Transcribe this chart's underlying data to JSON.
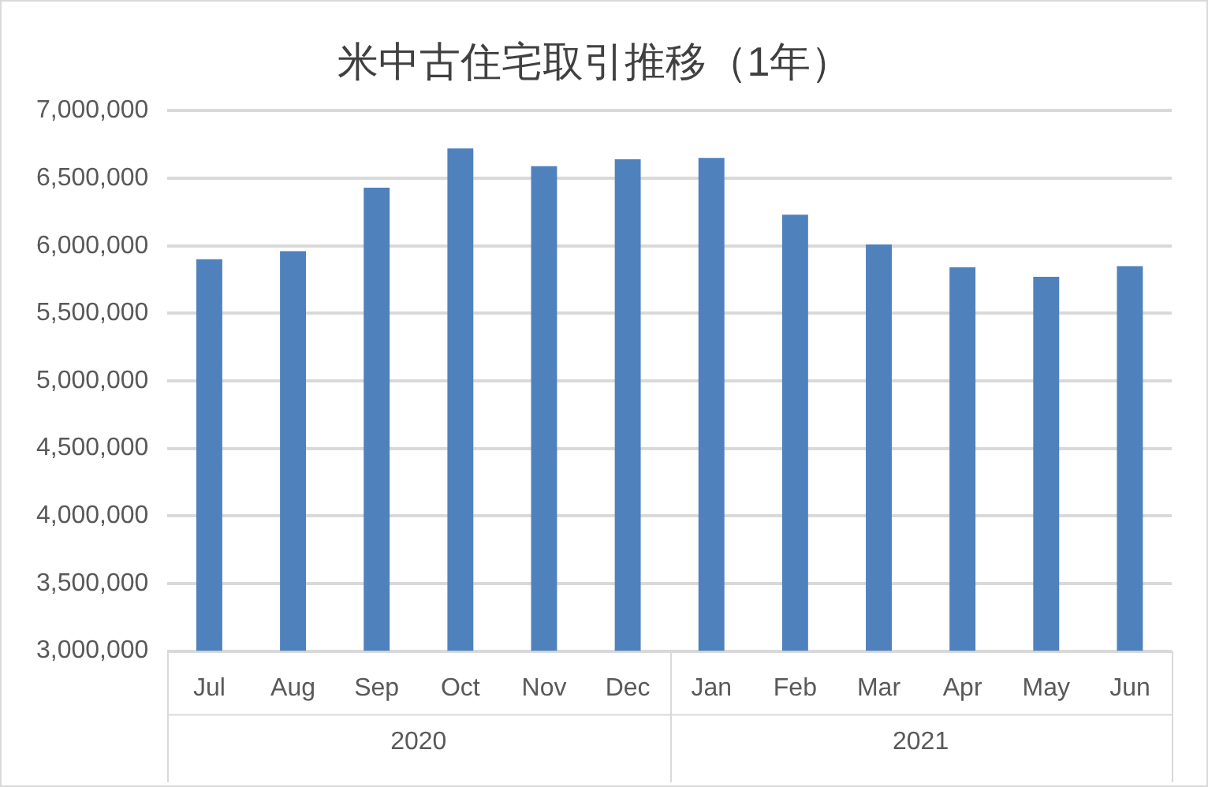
{
  "chart_data": {
    "type": "bar",
    "title": "米中古住宅取引推移（1年）",
    "categories": [
      "Jul",
      "Aug",
      "Sep",
      "Oct",
      "Nov",
      "Dec",
      "Jan",
      "Feb",
      "Mar",
      "Apr",
      "May",
      "Jun"
    ],
    "values": [
      5900000,
      5960000,
      6430000,
      6720000,
      6590000,
      6640000,
      6650000,
      6230000,
      6010000,
      5840000,
      5770000,
      5850000
    ],
    "color": "#4f81bd",
    "ylim": [
      3000000,
      7000000
    ],
    "yticks": [
      {
        "value": 3000000,
        "label": "3,000,000"
      },
      {
        "value": 3500000,
        "label": "3,500,000"
      },
      {
        "value": 4000000,
        "label": "4,000,000"
      },
      {
        "value": 4500000,
        "label": "4,500,000"
      },
      {
        "value": 5000000,
        "label": "5,000,000"
      },
      {
        "value": 5500000,
        "label": "5,500,000"
      },
      {
        "value": 6000000,
        "label": "6,000,000"
      },
      {
        "value": 6500000,
        "label": "6,500,000"
      },
      {
        "value": 7000000,
        "label": "7,000,000"
      }
    ],
    "grid": "y",
    "legend": false,
    "annotations": [
      "2020",
      "2021"
    ]
  }
}
